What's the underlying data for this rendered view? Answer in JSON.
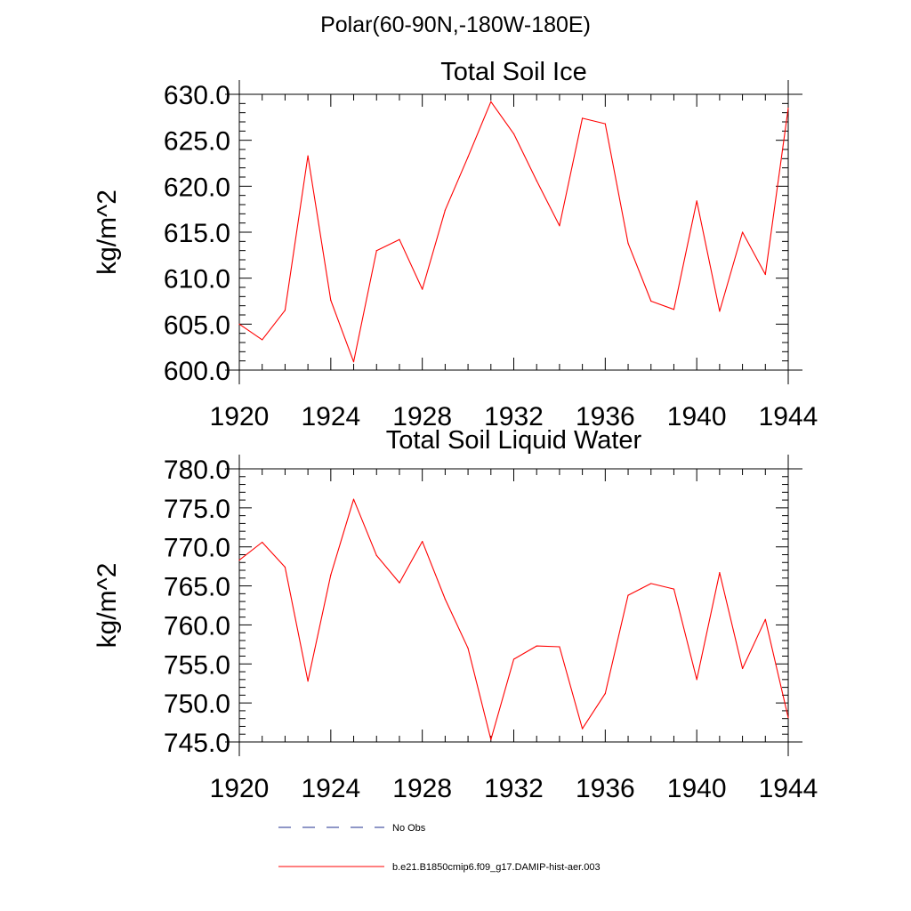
{
  "title": "Polar(60-90N,-180W-180E)",
  "colors": {
    "series": "#ff0000",
    "axes": "#000000",
    "no_obs": "#1f2f8f"
  },
  "legend": [
    {
      "label": "No Obs",
      "style": "dashed"
    },
    {
      "label": "b.e21.B1850cmip6.f09_g17.DAMIP-hist-aer.003",
      "style": "solid"
    }
  ],
  "chart_data": [
    {
      "type": "line",
      "title": "Total Soil Ice",
      "ylabel": "kg/m^2",
      "xlabel": "",
      "xlim": [
        1920,
        1944
      ],
      "ylim": [
        600.0,
        630.0
      ],
      "xticks": [
        "1920",
        "1924",
        "1928",
        "1932",
        "1936",
        "1940",
        "1944"
      ],
      "yticks": [
        "600.0",
        "605.0",
        "610.0",
        "615.0",
        "620.0",
        "625.0",
        "630.0"
      ],
      "grid": false,
      "series": [
        {
          "name": "b.e21.B1850cmip6.f09_g17.DAMIP-hist-aer.003",
          "x": [
            1920,
            1921,
            1922,
            1923,
            1924,
            1925,
            1926,
            1927,
            1928,
            1929,
            1930,
            1931,
            1932,
            1933,
            1934,
            1935,
            1936,
            1937,
            1938,
            1939,
            1940,
            1941,
            1942,
            1943,
            1944
          ],
          "y": [
            605.0,
            603.3,
            606.5,
            623.3,
            607.6,
            600.9,
            613.0,
            614.2,
            608.8,
            617.4,
            623.2,
            629.2,
            625.7,
            620.6,
            615.7,
            627.4,
            626.8,
            613.8,
            607.5,
            606.6,
            618.4,
            606.4,
            615.0,
            610.4,
            628.5
          ]
        }
      ]
    },
    {
      "type": "line",
      "title": "Total Soil Liquid Water",
      "ylabel": "kg/m^2",
      "xlabel": "",
      "xlim": [
        1920,
        1944
      ],
      "ylim": [
        745.0,
        780.0
      ],
      "xticks": [
        "1920",
        "1924",
        "1928",
        "1932",
        "1936",
        "1940",
        "1944"
      ],
      "yticks": [
        "745.0",
        "750.0",
        "755.0",
        "760.0",
        "765.0",
        "770.0",
        "775.0",
        "780.0"
      ],
      "grid": false,
      "series": [
        {
          "name": "b.e21.B1850cmip6.f09_g17.DAMIP-hist-aer.003",
          "x": [
            1920,
            1921,
            1922,
            1923,
            1924,
            1925,
            1926,
            1927,
            1928,
            1929,
            1930,
            1931,
            1932,
            1933,
            1934,
            1935,
            1936,
            1937,
            1938,
            1939,
            1940,
            1941,
            1942,
            1943,
            1944
          ],
          "y": [
            768.3,
            770.6,
            767.4,
            752.8,
            766.4,
            776.1,
            768.9,
            765.4,
            770.7,
            763.3,
            757.0,
            745.3,
            755.6,
            757.3,
            757.2,
            746.7,
            751.2,
            763.8,
            765.3,
            764.6,
            753.0,
            766.7,
            754.4,
            760.7,
            748.1
          ]
        }
      ]
    }
  ]
}
